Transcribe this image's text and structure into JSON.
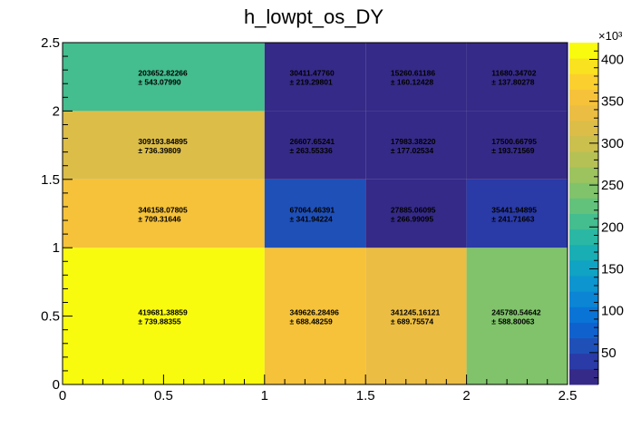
{
  "chart_data": {
    "type": "heatmap",
    "title": "h_lowpt_os_DY",
    "x_edges": [
      0,
      1,
      1.5,
      2,
      2.5
    ],
    "y_edges": [
      0,
      1,
      1.5,
      2,
      2.5
    ],
    "xlim": [
      0,
      2.5
    ],
    "ylim": [
      0,
      2.5
    ],
    "x_tick_labels": [
      "0",
      "0.5",
      "1",
      "1.5",
      "2",
      "2.5"
    ],
    "y_tick_labels": [
      "0",
      "0.5",
      "1",
      "1.5",
      "2",
      "2.5"
    ],
    "colorbar": {
      "range": [
        12000,
        420000
      ],
      "exponent_label": "×10³",
      "tick_values": [
        50000,
        100000,
        150000,
        200000,
        250000,
        300000,
        350000,
        400000
      ],
      "tick_labels": [
        "50",
        "100",
        "150",
        "200",
        "250",
        "300",
        "350",
        "400"
      ],
      "palette": [
        "#352a87",
        "#2a3aa6",
        "#1f50b8",
        "#0f62ce",
        "#0a74d6",
        "#0b85d4",
        "#0d95cf",
        "#10a3c3",
        "#18aeb4",
        "#2ab7a3",
        "#44bd8f",
        "#62c27c",
        "#80c36b",
        "#9cc35e",
        "#b6c155",
        "#cbbf4e",
        "#dcbd48",
        "#ebbd42",
        "#f6c23a",
        "#fbd02e",
        "#f9e21f",
        "#f9fb0e"
      ],
      "palette_scale": "linear",
      "palette_note_colors_are_discrete_bins": true
    },
    "grid": false,
    "cells": [
      {
        "x_bin": 0,
        "y_bin": 0,
        "value": 419681.38859,
        "value_label": "419681.38859",
        "error_label": "± 739.88355"
      },
      {
        "x_bin": 1,
        "y_bin": 0,
        "value": 349626.28496,
        "value_label": "349626.28496",
        "error_label": "± 688.48259"
      },
      {
        "x_bin": 2,
        "y_bin": 0,
        "value": 341245.16121,
        "value_label": "341245.16121",
        "error_label": "± 689.75574"
      },
      {
        "x_bin": 3,
        "y_bin": 0,
        "value": 245780.54642,
        "value_label": "245780.54642",
        "error_label": "± 588.80063"
      },
      {
        "x_bin": 0,
        "y_bin": 1,
        "value": 346158.07805,
        "value_label": "346158.07805",
        "error_label": "± 709.31646"
      },
      {
        "x_bin": 1,
        "y_bin": 1,
        "value": 67064.46391,
        "value_label": "67064.46391",
        "error_label": "± 341.94224"
      },
      {
        "x_bin": 2,
        "y_bin": 1,
        "value": 27885.06095,
        "value_label": "27885.06095",
        "error_label": "± 266.99095"
      },
      {
        "x_bin": 3,
        "y_bin": 1,
        "value": 35441.94895,
        "value_label": "35441.94895",
        "error_label": "± 241.71663"
      },
      {
        "x_bin": 0,
        "y_bin": 2,
        "value": 309193.84895,
        "value_label": "309193.84895",
        "error_label": "± 736.39809"
      },
      {
        "x_bin": 1,
        "y_bin": 2,
        "value": 26607.65241,
        "value_label": "26607.65241",
        "error_label": "± 263.55336"
      },
      {
        "x_bin": 2,
        "y_bin": 2,
        "value": 17983.3822,
        "value_label": "17983.38220",
        "error_label": "± 177.02534"
      },
      {
        "x_bin": 3,
        "y_bin": 2,
        "value": 17500.66795,
        "value_label": "17500.66795",
        "error_label": "± 193.71569"
      },
      {
        "x_bin": 0,
        "y_bin": 3,
        "value": 203652.82266,
        "value_label": "203652.82266",
        "error_label": "± 543.07990"
      },
      {
        "x_bin": 1,
        "y_bin": 3,
        "value": 30411.4776,
        "value_label": "30411.47760",
        "error_label": "± 219.29801"
      },
      {
        "x_bin": 2,
        "y_bin": 3,
        "value": 15260.61186,
        "value_label": "15260.61186",
        "error_label": "± 160.12428"
      },
      {
        "x_bin": 3,
        "y_bin": 3,
        "value": 11680.34702,
        "value_label": "11680.34702",
        "error_label": "± 137.80278"
      }
    ]
  }
}
